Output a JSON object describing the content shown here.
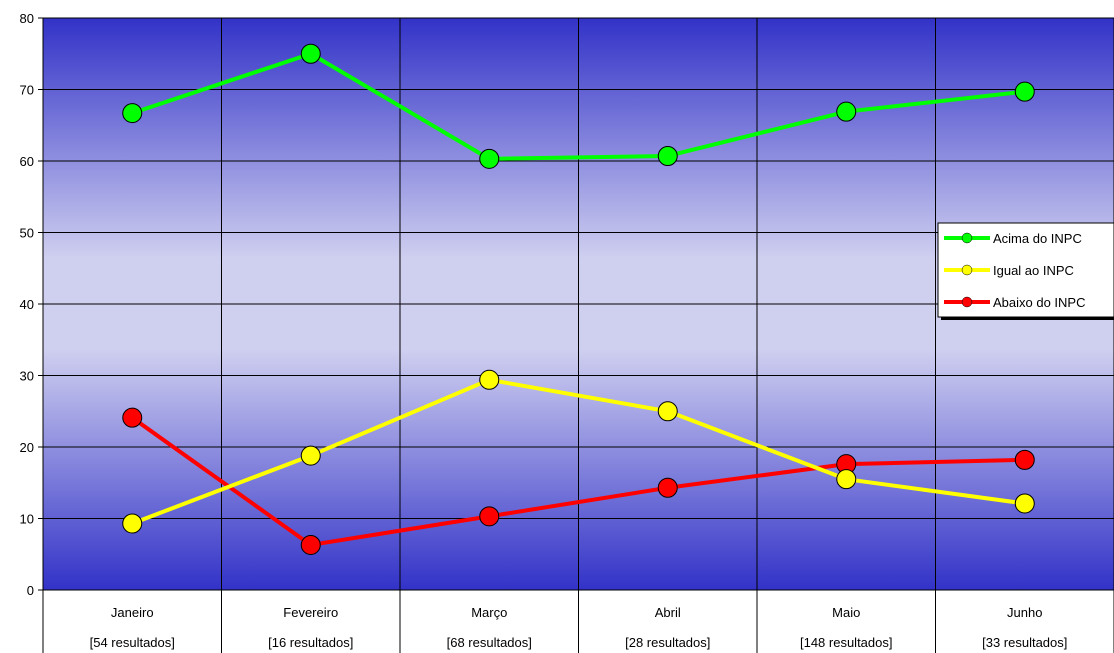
{
  "chart_data": {
    "type": "line",
    "categories": [
      "Janeiro",
      "Fevereiro",
      "Março",
      "Abril",
      "Maio",
      "Junho"
    ],
    "category_sublabels": [
      "[54 resultados]",
      "[16 resultados]",
      "[68 resultados]",
      "[28 resultados]",
      "[148 resultados]",
      "[33 resultados]"
    ],
    "series": [
      {
        "name": "Acima do INPC",
        "color": "#00ff00",
        "values": [
          66.7,
          75.0,
          60.3,
          60.7,
          66.9,
          69.7
        ]
      },
      {
        "name": "Igual ao INPC",
        "color": "#ffff00",
        "values": [
          9.3,
          18.8,
          29.4,
          25.0,
          15.5,
          12.1
        ]
      },
      {
        "name": "Abaixo do INPC",
        "color": "#ff0000",
        "values": [
          24.1,
          6.3,
          10.3,
          14.3,
          17.6,
          18.2
        ]
      }
    ],
    "ylim": [
      0,
      80
    ],
    "yticks": [
      "0",
      "10",
      "20",
      "30",
      "40",
      "50",
      "60",
      "70",
      "80"
    ],
    "grid": true,
    "legend_position": "right",
    "background": "blue-lavender vertical gradient"
  }
}
